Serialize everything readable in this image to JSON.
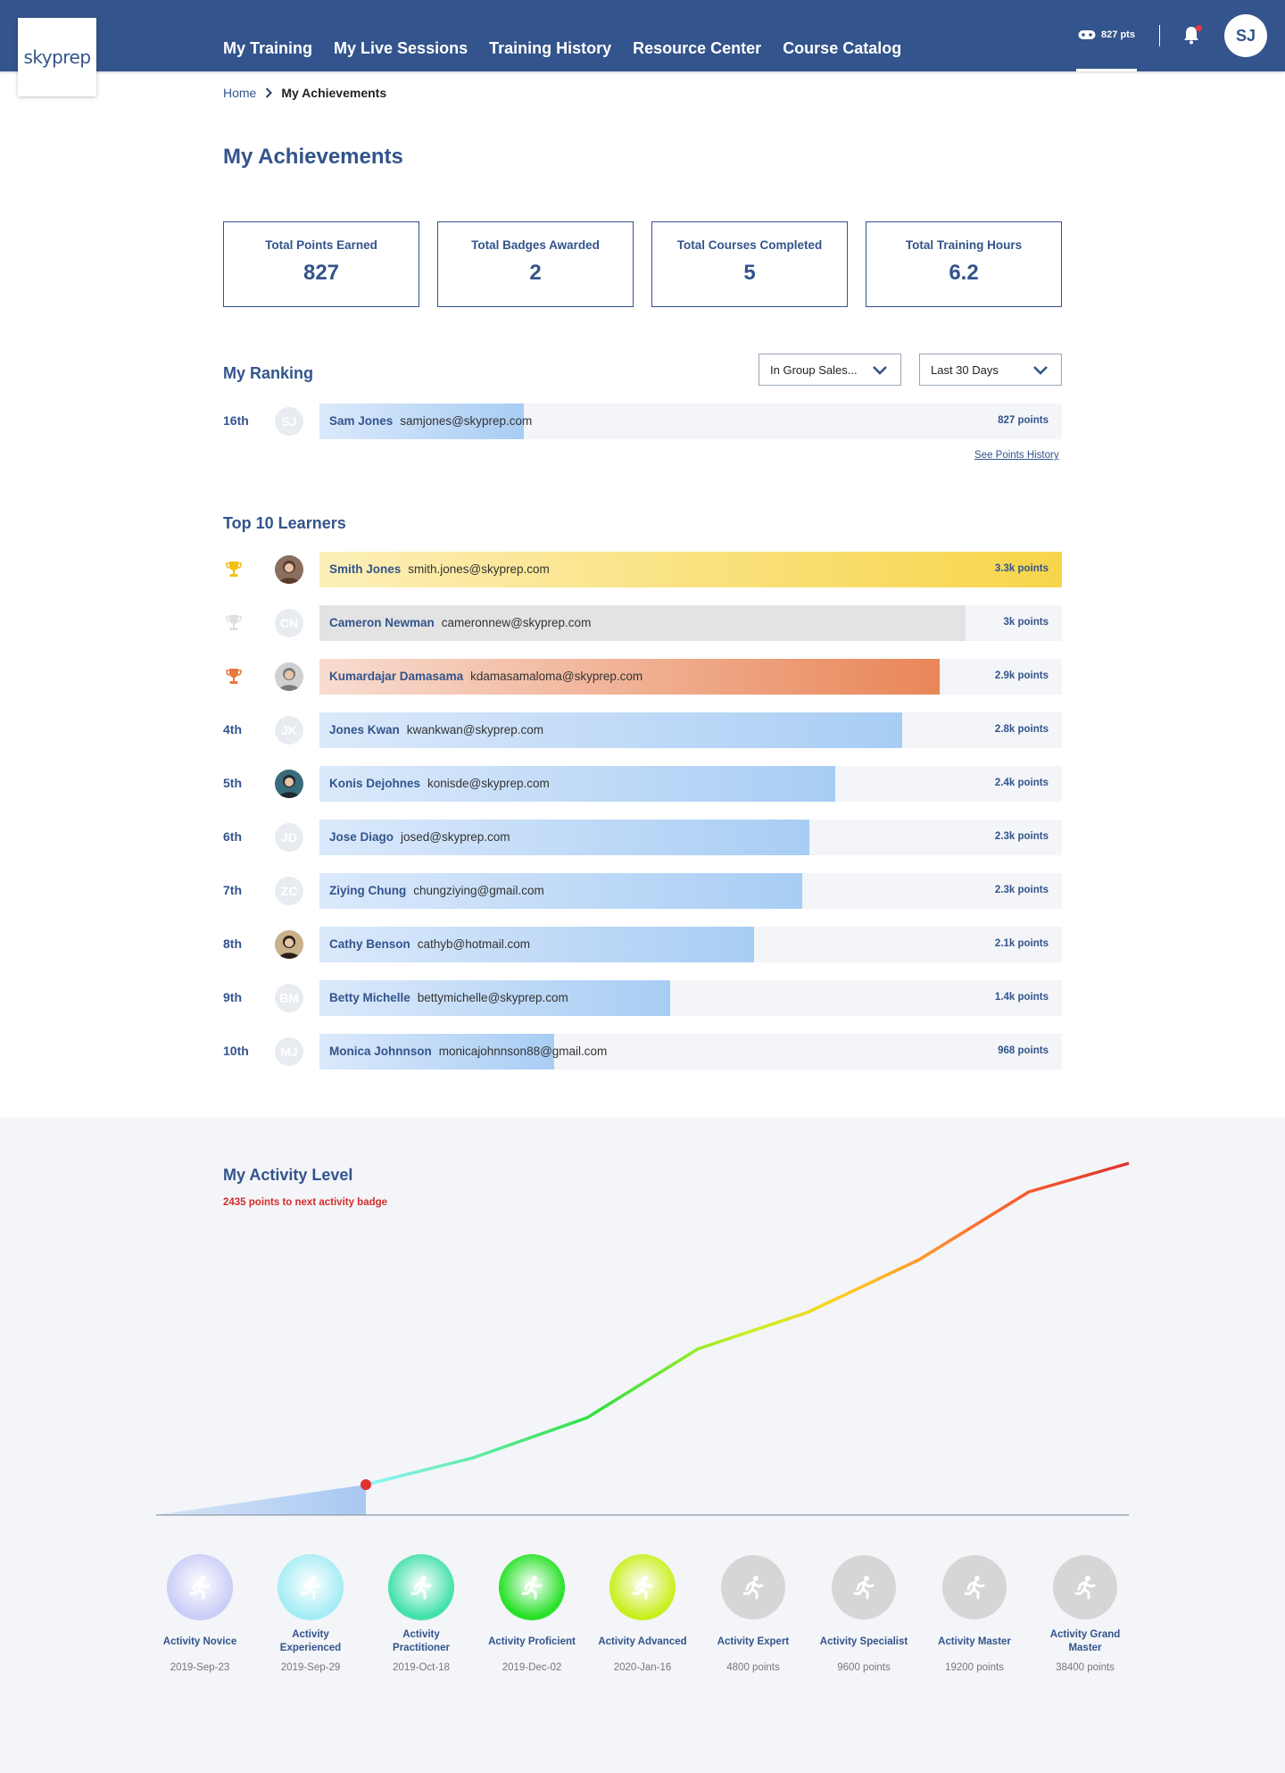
{
  "brand": {
    "logo": "skyprep"
  },
  "nav": {
    "links": [
      "My Training",
      "My Live Sessions",
      "Training History",
      "Resource Center",
      "Course Catalog"
    ],
    "points": "827 pts",
    "user_initials": "SJ"
  },
  "breadcrumb": {
    "home": "Home",
    "current": "My Achievements"
  },
  "page_title": "My Achievements",
  "stats": [
    {
      "label": "Total Points Earned",
      "value": "827"
    },
    {
      "label": "Total Badges Awarded",
      "value": "2"
    },
    {
      "label": "Total Courses Completed",
      "value": "5"
    },
    {
      "label": "Total Training Hours",
      "value": "6.2"
    }
  ],
  "ranking": {
    "title": "My Ranking",
    "group_select": "In Group Sales...",
    "period_select": "Last 30 Days",
    "me": {
      "rank": "16th",
      "initials": "SJ",
      "name": "Sam Jones",
      "email": "samjones@skyprep.com",
      "points": "827 points",
      "fraction": 0.275
    },
    "see_history": "See Points History"
  },
  "leaders": {
    "title": "Top 10 Learners",
    "rows": [
      {
        "rank": "",
        "trophy": "gold",
        "initials": "",
        "photo": true,
        "name": "Smith Jones",
        "email": "smith.jones@skyprep.com",
        "points": "3.3k points",
        "fraction": 1.0,
        "style": "gold"
      },
      {
        "rank": "",
        "trophy": "silver",
        "initials": "CN",
        "photo": false,
        "name": "Cameron Newman",
        "email": "cameronnew@skyprep.com",
        "points": "3k points",
        "fraction": 0.87,
        "style": "silver"
      },
      {
        "rank": "",
        "trophy": "bronze",
        "initials": "",
        "photo": true,
        "name": "Kumardajar Damasama",
        "email": "kdamasamaloma@skyprep.com",
        "points": "2.9k points",
        "fraction": 0.835,
        "style": "bronze"
      },
      {
        "rank": "4th",
        "trophy": "",
        "initials": "JK",
        "photo": false,
        "name": "Jones Kwan",
        "email": "kwankwan@skyprep.com",
        "points": "2.8k points",
        "fraction": 0.785,
        "style": "blue"
      },
      {
        "rank": "5th",
        "trophy": "",
        "initials": "",
        "photo": true,
        "name": "Konis Dejohnes",
        "email": "konisde@skyprep.com",
        "points": "2.4k points",
        "fraction": 0.695,
        "style": "blue"
      },
      {
        "rank": "6th",
        "trophy": "",
        "initials": "JD",
        "photo": false,
        "name": "Jose Diago",
        "email": "josed@skyprep.com",
        "points": "2.3k points",
        "fraction": 0.66,
        "style": "blue"
      },
      {
        "rank": "7th",
        "trophy": "",
        "initials": "ZC",
        "photo": false,
        "name": "Ziying Chung",
        "email": "chungziying@gmail.com",
        "points": "2.3k points",
        "fraction": 0.65,
        "style": "blue"
      },
      {
        "rank": "8th",
        "trophy": "",
        "initials": "",
        "photo": true,
        "name": "Cathy Benson",
        "email": "cathyb@hotmail.com",
        "points": "2.1k points",
        "fraction": 0.585,
        "style": "blue"
      },
      {
        "rank": "9th",
        "trophy": "",
        "initials": "BM",
        "photo": false,
        "name": "Betty Michelle",
        "email": "bettymichelle@skyprep.com",
        "points": "1.4k points",
        "fraction": 0.472,
        "style": "blue"
      },
      {
        "rank": "10th",
        "trophy": "",
        "initials": "MJ",
        "photo": false,
        "name": "Monica Johnnson",
        "email": "monicajohnnson88@gmail.com",
        "points": "968 points",
        "fraction": 0.316,
        "style": "blue"
      }
    ]
  },
  "activity": {
    "title": "My Activity Level",
    "subtitle": "2435 points to next activity badge",
    "badges": [
      {
        "name": "Activity Novice",
        "date": "2019-Sep-23",
        "color": "#c9ccf7",
        "earned": true
      },
      {
        "name": "Activity Experienced",
        "date": "2019-Sep-29",
        "color": "#a3ecf5",
        "earned": true
      },
      {
        "name": "Activity Practitioner",
        "date": "2019-Oct-18",
        "color": "#3fe0a8",
        "earned": true
      },
      {
        "name": "Activity  Proficient",
        "date": "2019-Dec-02",
        "color": "#22e022",
        "earned": true
      },
      {
        "name": "Activity Advanced",
        "date": "2020-Jan-16",
        "color": "#c8ee18",
        "earned": true
      },
      {
        "name": "Activity Expert",
        "date": "4800 points",
        "color": "#d6d6d6",
        "earned": false
      },
      {
        "name": "Activity Specialist",
        "date": "9600 points",
        "color": "#d6d6d6",
        "earned": false
      },
      {
        "name": "Activity Master",
        "date": "19200 points",
        "color": "#d6d6d6",
        "earned": false
      },
      {
        "name": "Activity Grand Master",
        "date": "38400 points",
        "color": "#d6d6d6",
        "earned": false
      }
    ]
  }
}
